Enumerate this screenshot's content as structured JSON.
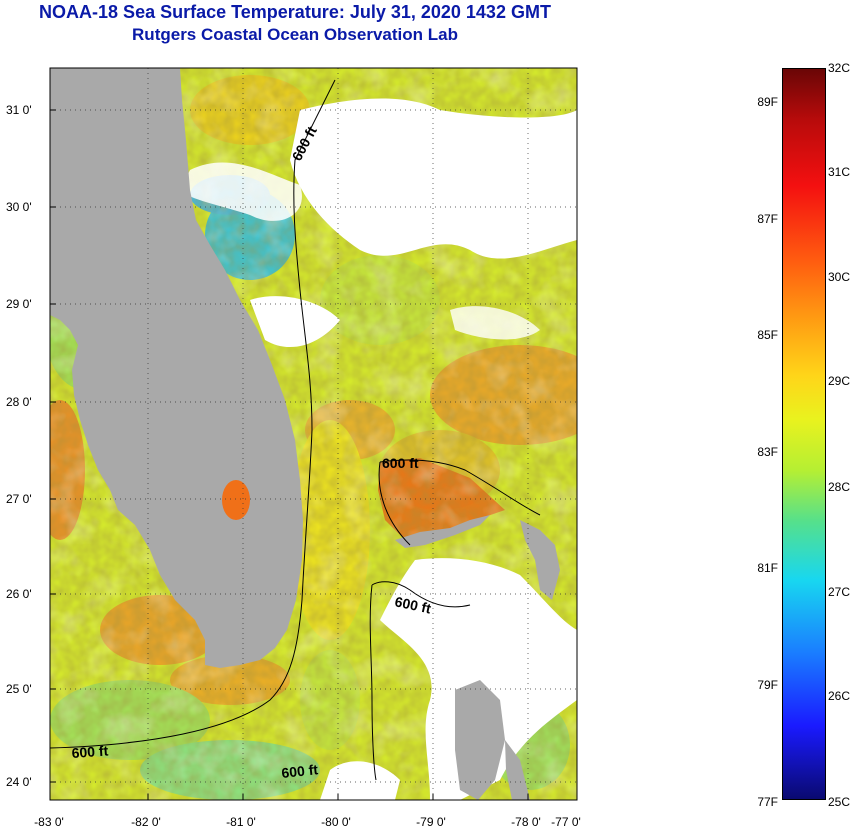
{
  "title": {
    "line1": "NOAA-18 Sea Surface Temperature:  July 31, 2020 1432 GMT",
    "line2": "Rutgers Coastal Ocean Observation Lab"
  },
  "lat_ticks": [
    "31 0'",
    "30 0'",
    "29 0'",
    "28 0'",
    "27 0'",
    "26 0'",
    "25 0'",
    "24 0'"
  ],
  "lon_ticks": [
    "-83 0'",
    "-82 0'",
    "-81 0'",
    "-80 0'",
    "-79 0'",
    "-78 0'",
    "-77 0'"
  ],
  "isobath_label": "600 ft",
  "colorbar": {
    "celsius": [
      "32C",
      "31C",
      "30C",
      "29C",
      "28C",
      "27C",
      "26C",
      "25C"
    ],
    "fahrenheit": [
      "89F",
      "87F",
      "85F",
      "83F",
      "81F",
      "79F",
      "77F"
    ]
  },
  "colors": {
    "title": "#0a1aa8",
    "land": "#a9a9a9",
    "cloud": "#ffffff",
    "isobath": "#000000"
  }
}
